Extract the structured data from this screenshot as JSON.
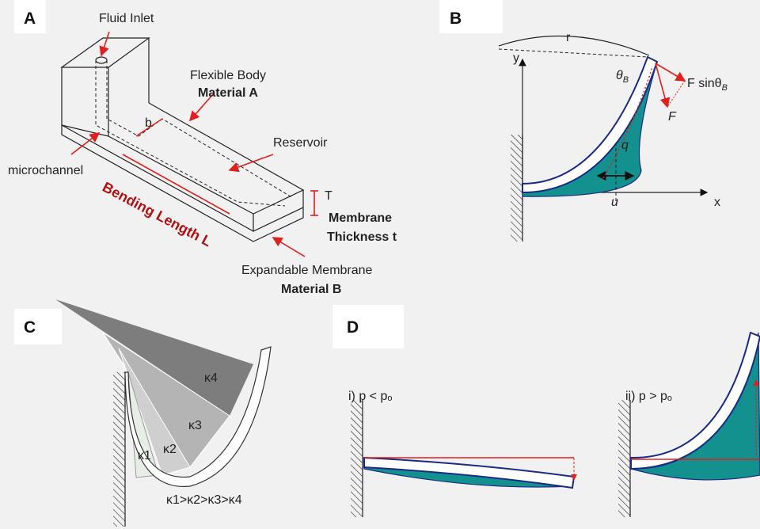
{
  "panels": [
    {
      "label": "A",
      "texts": {
        "inlet": "Fluid Inlet",
        "body": "Flexible Body",
        "material_a": "Material A",
        "b": "b",
        "reservoir": "Reservoir",
        "microchannel": "microchannel",
        "length": "Bending Length L",
        "T": "T",
        "membrane": "Membrane",
        "thickness": "Thickness t",
        "expandable": "Expandable Membrane",
        "material_b": "Material B"
      }
    },
    {
      "label": "B",
      "texts": {
        "r": "r",
        "y": "y",
        "theta": {
          "symbol": "θ",
          "subscript": "B"
        },
        "force_x": {
          "text": "F sinθ",
          "subscript": "B"
        },
        "force": "F",
        "q": "q",
        "u": "u",
        "x": "x"
      }
    },
    {
      "label": "C",
      "texts": {
        "k4": "κ4",
        "k3": "κ3",
        "k2": "κ2",
        "k1": "κ1",
        "order": "κ1>κ2>κ3>κ4"
      }
    },
    {
      "label": "D",
      "texts": {
        "low": "i)  p < pₒ",
        "high": "ii) p > pₒ"
      }
    }
  ]
}
